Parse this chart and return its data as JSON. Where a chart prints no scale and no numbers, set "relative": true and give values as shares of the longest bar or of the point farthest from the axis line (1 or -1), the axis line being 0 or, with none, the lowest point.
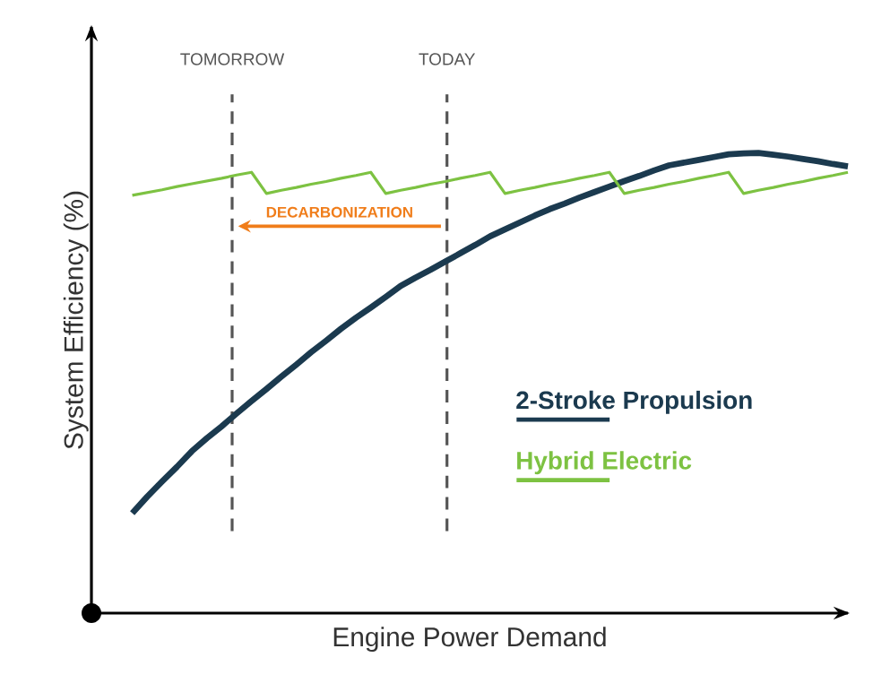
{
  "chart_data": {
    "type": "line",
    "relative": true,
    "xlabel": "Engine Power Demand",
    "ylabel": "System Efficiency (%)",
    "tick_labels": false,
    "legend": "bottom right",
    "categories": [
      null,
      null,
      null,
      null,
      null,
      null,
      null,
      null,
      null,
      null,
      null,
      null,
      null,
      null,
      null,
      null,
      null,
      null,
      null,
      null,
      null,
      null,
      null,
      null,
      null,
      null,
      null,
      null,
      null,
      null,
      null,
      null,
      null,
      null,
      null,
      null,
      null,
      null,
      null,
      null,
      null,
      null,
      null,
      null,
      null,
      null,
      null,
      null,
      null
    ],
    "annotations": [
      "DECARBONIZATION"
    ],
    "ref_lines": [
      {
        "axis": "x",
        "label": "TOMORROW",
        "color": "#555555",
        "line_style": "dashed"
      },
      {
        "axis": "x",
        "label": "TODAY",
        "color": "#555555",
        "line_style": "dashed"
      }
    ],
    "series": [
      {
        "name": "2-Stroke Propulsion",
        "color": "#1b3a4f",
        "values": [
          0.217,
          0.253,
          0.286,
          0.318,
          0.352,
          0.38,
          0.406,
          0.434,
          0.461,
          0.487,
          0.514,
          0.54,
          0.567,
          0.592,
          0.618,
          0.642,
          0.664,
          0.687,
          0.711,
          0.729,
          0.746,
          0.764,
          0.782,
          0.8,
          0.819,
          0.834,
          0.849,
          0.864,
          0.878,
          0.89,
          0.903,
          0.915,
          0.927,
          0.939,
          0.95,
          0.962,
          0.973,
          0.979,
          0.985,
          0.991,
          0.997,
          0.999,
          1.0,
          0.996,
          0.992,
          0.987,
          0.982,
          0.976,
          0.971
        ]
      },
      {
        "name": "Hybrid Electric",
        "color": "#7dc242",
        "values": [
          0.908,
          0.914,
          0.92,
          0.927,
          0.933,
          0.939,
          0.945,
          0.952,
          0.958,
          0.912,
          0.919,
          0.925,
          0.932,
          0.938,
          0.945,
          0.951,
          0.958,
          0.912,
          0.919,
          0.925,
          0.932,
          0.938,
          0.945,
          0.951,
          0.958,
          0.912,
          0.919,
          0.925,
          0.932,
          0.938,
          0.945,
          0.951,
          0.958,
          0.912,
          0.919,
          0.925,
          0.932,
          0.938,
          0.945,
          0.951,
          0.958,
          0.912,
          0.919,
          0.925,
          0.932,
          0.938,
          0.945,
          0.951,
          0.958
        ]
      }
    ]
  }
}
